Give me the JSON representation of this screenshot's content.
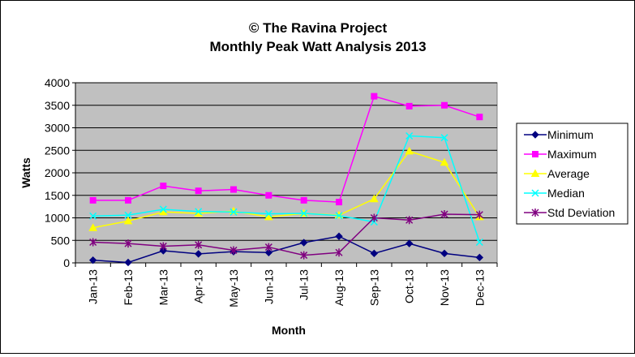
{
  "chart_data": {
    "type": "line",
    "title": "© The Ravina Project",
    "subtitle": "Monthly Peak Watt Analysis 2013",
    "xlabel": "Month",
    "ylabel": "Watts",
    "ylim": [
      0,
      4000
    ],
    "yticks": [
      0,
      500,
      1000,
      1500,
      2000,
      2500,
      3000,
      3500,
      4000
    ],
    "grid": true,
    "legend_position": "right",
    "plot_background": "#c0c0c0",
    "categories": [
      "Jan-13",
      "Feb-13",
      "Mar-13",
      "Apr-13",
      "May-13",
      "Jun-13",
      "Jul-13",
      "Aug-13",
      "Sep-13",
      "Oct-13",
      "Nov-13",
      "Dec-13"
    ],
    "series": [
      {
        "name": "Minimum",
        "color": "#000080",
        "marker": "diamond",
        "values": [
          60,
          10,
          270,
          200,
          250,
          230,
          450,
          590,
          210,
          430,
          210,
          120
        ]
      },
      {
        "name": "Maximum",
        "color": "#ff00ff",
        "marker": "square",
        "values": [
          1390,
          1390,
          1710,
          1600,
          1630,
          1500,
          1390,
          1350,
          3700,
          3480,
          3500,
          3240
        ]
      },
      {
        "name": "Average",
        "color": "#ffff00",
        "marker": "triangle",
        "values": [
          780,
          930,
          1130,
          1100,
          1150,
          1020,
          1100,
          1060,
          1420,
          2480,
          2230,
          1020
        ]
      },
      {
        "name": "Median",
        "color": "#00ffff",
        "marker": "x",
        "values": [
          1040,
          1060,
          1190,
          1140,
          1130,
          1090,
          1100,
          1050,
          910,
          2820,
          2780,
          460
        ]
      },
      {
        "name": "Std Deviation",
        "color": "#800080",
        "marker": "star",
        "values": [
          460,
          430,
          370,
          400,
          280,
          350,
          170,
          230,
          1000,
          950,
          1080,
          1070
        ]
      }
    ]
  }
}
